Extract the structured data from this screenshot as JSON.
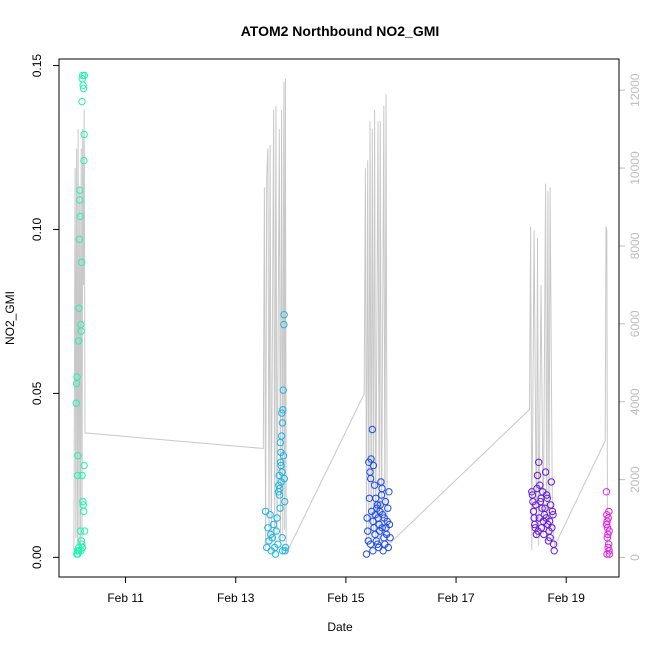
{
  "chart_data": {
    "type": "scatter",
    "title": "ATOM2 Northbound NO2_GMI",
    "xlabel": "Date",
    "ylabel": "NO2_GMI",
    "xlim": [
      "2017-02-09T19:00",
      "2017-02-19T23:00"
    ],
    "ylim": [
      -0.006,
      0.152
    ],
    "y_ticks": [
      0.0,
      0.05,
      0.1,
      0.15
    ],
    "y_tick_labels": [
      "0.00",
      "0.05",
      "0.10",
      "0.15"
    ],
    "x_ticks": [
      "2017-02-11",
      "2017-02-13",
      "2017-02-15",
      "2017-02-17",
      "2017-02-19"
    ],
    "x_tick_labels": [
      "Feb 11",
      "Feb 13",
      "Feb 15",
      "Feb 17",
      "Feb 19"
    ],
    "y2_lim": [
      -500,
      12800
    ],
    "y2_ticks": [
      0,
      2000,
      4000,
      6000,
      8000,
      10000,
      12000
    ],
    "y2_tick_labels": [
      "0",
      "2000",
      "4000",
      "6000",
      "8000",
      "10000",
      "12000"
    ],
    "y2_color": "#bdbdbd",
    "grid": false,
    "series": [
      {
        "color": "#1ef5b0",
        "points": [
          [
            "2017-02-10T03:00",
            0.002
          ],
          [
            "2017-02-10T03:12",
            0.001
          ],
          [
            "2017-02-10T03:24",
            0.002
          ],
          [
            "2017-02-10T03:36",
            0.003
          ],
          [
            "2017-02-10T02:40",
            0.053
          ],
          [
            "2017-02-10T02:50",
            0.055
          ],
          [
            "2017-02-10T02:30",
            0.047
          ],
          [
            "2017-02-10T03:05",
            0.025
          ],
          [
            "2017-02-10T03:15",
            0.031
          ],
          [
            "2017-02-10T03:30",
            0.066
          ],
          [
            "2017-02-10T03:40",
            0.076
          ],
          [
            "2017-02-10T03:50",
            0.097
          ],
          [
            "2017-02-10T04:00",
            0.109
          ],
          [
            "2017-02-10T04:05",
            0.112
          ],
          [
            "2017-02-10T04:15",
            0.104
          ],
          [
            "2017-02-10T04:30",
            0.071
          ],
          [
            "2017-02-10T04:40",
            0.069
          ],
          [
            "2017-02-10T04:50",
            0.09
          ],
          [
            "2017-02-10T05:00",
            0.139
          ],
          [
            "2017-02-10T05:10",
            0.146
          ],
          [
            "2017-02-10T05:20",
            0.147
          ],
          [
            "2017-02-10T05:30",
            0.144
          ],
          [
            "2017-02-10T05:40",
            0.143
          ],
          [
            "2017-02-10T05:50",
            0.121
          ],
          [
            "2017-02-10T06:00",
            0.129
          ],
          [
            "2017-02-10T06:05",
            0.147
          ],
          [
            "2017-02-10T04:20",
            0.008
          ],
          [
            "2017-02-10T04:45",
            0.005
          ],
          [
            "2017-02-10T05:05",
            0.025
          ],
          [
            "2017-02-10T05:25",
            0.017
          ],
          [
            "2017-02-10T05:35",
            0.016
          ],
          [
            "2017-02-10T05:45",
            0.014
          ],
          [
            "2017-02-10T05:55",
            0.028
          ],
          [
            "2017-02-10T06:10",
            0.008
          ],
          [
            "2017-02-10T04:35",
            0.002
          ],
          [
            "2017-02-10T05:15",
            0.003
          ],
          [
            "2017-02-10T02:45",
            0.001
          ],
          [
            "2017-02-10T03:45",
            0.002
          ],
          [
            "2017-02-10T04:55",
            0.004
          ]
        ]
      },
      {
        "color": "#1ab4e8",
        "points": [
          [
            "2017-02-13T13:00",
            0.014
          ],
          [
            "2017-02-13T13:30",
            0.003
          ],
          [
            "2017-02-13T14:00",
            0.009
          ],
          [
            "2017-02-13T14:30",
            0.005
          ],
          [
            "2017-02-13T15:00",
            0.013
          ],
          [
            "2017-02-13T15:30",
            0.002
          ],
          [
            "2017-02-13T16:00",
            0.006
          ],
          [
            "2017-02-13T16:30",
            0.01
          ],
          [
            "2017-02-13T17:00",
            0.003
          ],
          [
            "2017-02-13T17:20",
            0.001
          ],
          [
            "2017-02-13T17:40",
            0.008
          ],
          [
            "2017-02-13T18:00",
            0.012
          ],
          [
            "2017-02-13T18:20",
            0.004
          ],
          [
            "2017-02-13T18:40",
            0.02
          ],
          [
            "2017-02-13T19:00",
            0.025
          ],
          [
            "2017-02-13T19:10",
            0.021
          ],
          [
            "2017-02-13T19:20",
            0.015
          ],
          [
            "2017-02-13T19:30",
            0.029
          ],
          [
            "2017-02-13T19:40",
            0.032
          ],
          [
            "2017-02-13T19:50",
            0.023
          ],
          [
            "2017-02-13T20:00",
            0.037
          ],
          [
            "2017-02-13T20:10",
            0.026
          ],
          [
            "2017-02-13T20:20",
            0.041
          ],
          [
            "2017-02-13T20:30",
            0.045
          ],
          [
            "2017-02-13T20:40",
            0.051
          ],
          [
            "2017-02-13T20:50",
            0.031
          ],
          [
            "2017-02-13T21:00",
            0.071
          ],
          [
            "2017-02-13T21:05",
            0.074
          ],
          [
            "2017-02-13T21:10",
            0.024
          ],
          [
            "2017-02-13T21:20",
            0.017
          ],
          [
            "2017-02-13T21:30",
            0.002
          ],
          [
            "2017-02-13T21:40",
            0.003
          ],
          [
            "2017-02-13T18:50",
            0.022
          ],
          [
            "2017-02-13T19:05",
            0.019
          ],
          [
            "2017-02-13T19:25",
            0.035
          ],
          [
            "2017-02-13T19:45",
            0.028
          ],
          [
            "2017-02-13T20:05",
            0.044
          ],
          [
            "2017-02-13T20:15",
            0.006
          ],
          [
            "2017-02-13T20:25",
            0.002
          ],
          [
            "2017-02-13T15:15",
            0.007
          ]
        ]
      },
      {
        "color": "#1b4af0",
        "points": [
          [
            "2017-02-15T09:00",
            0.001
          ],
          [
            "2017-02-15T09:30",
            0.008
          ],
          [
            "2017-02-15T10:00",
            0.029
          ],
          [
            "2017-02-15T10:30",
            0.026
          ],
          [
            "2017-02-15T11:00",
            0.03
          ],
          [
            "2017-02-15T11:30",
            0.039
          ],
          [
            "2017-02-15T12:00",
            0.028
          ],
          [
            "2017-02-15T12:30",
            0.022
          ],
          [
            "2017-02-15T13:00",
            0.018
          ],
          [
            "2017-02-15T13:30",
            0.015
          ],
          [
            "2017-02-15T14:00",
            0.012
          ],
          [
            "2017-02-15T14:30",
            0.01
          ],
          [
            "2017-02-15T15:00",
            0.016
          ],
          [
            "2017-02-15T15:30",
            0.019
          ],
          [
            "2017-02-15T16:00",
            0.013
          ],
          [
            "2017-02-15T16:30",
            0.006
          ],
          [
            "2017-02-15T17:00",
            0.004
          ],
          [
            "2017-02-15T17:30",
            0.009
          ],
          [
            "2017-02-15T18:00",
            0.011
          ],
          [
            "2017-02-15T18:30",
            0.003
          ],
          [
            "2017-02-15T09:15",
            0.012
          ],
          [
            "2017-02-15T09:45",
            0.005
          ],
          [
            "2017-02-15T10:15",
            0.018
          ],
          [
            "2017-02-15T10:45",
            0.004
          ],
          [
            "2017-02-15T11:15",
            0.014
          ],
          [
            "2017-02-15T11:45",
            0.002
          ],
          [
            "2017-02-15T12:15",
            0.009
          ],
          [
            "2017-02-15T12:45",
            0.007
          ],
          [
            "2017-02-15T13:15",
            0.005
          ],
          [
            "2017-02-15T13:45",
            0.016
          ],
          [
            "2017-02-15T14:15",
            0.003
          ],
          [
            "2017-02-15T14:45",
            0.008
          ],
          [
            "2017-02-15T15:15",
            0.023
          ],
          [
            "2017-02-15T15:45",
            0.021
          ],
          [
            "2017-02-15T16:15",
            0.002
          ],
          [
            "2017-02-15T16:45",
            0.012
          ],
          [
            "2017-02-15T17:15",
            0.017
          ],
          [
            "2017-02-15T17:45",
            0.007
          ],
          [
            "2017-02-15T18:15",
            0.015
          ],
          [
            "2017-02-15T18:45",
            0.02
          ],
          [
            "2017-02-15T19:00",
            0.01
          ],
          [
            "2017-02-15T19:15",
            0.006
          ],
          [
            "2017-02-15T10:50",
            0.024
          ],
          [
            "2017-02-15T11:50",
            0.011
          ],
          [
            "2017-02-15T12:50",
            0.013
          ],
          [
            "2017-02-15T13:50",
            0.004
          ],
          [
            "2017-02-15T14:50",
            0.014
          ],
          [
            "2017-02-15T15:50",
            0.009
          ]
        ]
      },
      {
        "color": "#6418e0",
        "points": [
          [
            "2017-02-18T09:00",
            0.02
          ],
          [
            "2017-02-18T09:30",
            0.017
          ],
          [
            "2017-02-18T10:00",
            0.012
          ],
          [
            "2017-02-18T10:30",
            0.009
          ],
          [
            "2017-02-18T11:00",
            0.007
          ],
          [
            "2017-02-18T11:30",
            0.025
          ],
          [
            "2017-02-18T12:00",
            0.029
          ],
          [
            "2017-02-18T12:30",
            0.022
          ],
          [
            "2017-02-18T13:00",
            0.018
          ],
          [
            "2017-02-18T13:30",
            0.015
          ],
          [
            "2017-02-18T14:00",
            0.011
          ],
          [
            "2017-02-18T14:30",
            0.013
          ],
          [
            "2017-02-18T15:00",
            0.026
          ],
          [
            "2017-02-18T15:30",
            0.019
          ],
          [
            "2017-02-18T16:00",
            0.01
          ],
          [
            "2017-02-18T16:30",
            0.008
          ],
          [
            "2017-02-18T17:00",
            0.006
          ],
          [
            "2017-02-18T17:30",
            0.023
          ],
          [
            "2017-02-18T18:00",
            0.014
          ],
          [
            "2017-02-18T18:30",
            0.004
          ],
          [
            "2017-02-18T09:15",
            0.019
          ],
          [
            "2017-02-18T09:45",
            0.014
          ],
          [
            "2017-02-18T10:15",
            0.01
          ],
          [
            "2017-02-18T10:45",
            0.016
          ],
          [
            "2017-02-18T11:15",
            0.021
          ],
          [
            "2017-02-18T11:45",
            0.008
          ],
          [
            "2017-02-18T12:15",
            0.012
          ],
          [
            "2017-02-18T12:45",
            0.017
          ],
          [
            "2017-02-18T13:15",
            0.009
          ],
          [
            "2017-02-18T13:45",
            0.02
          ],
          [
            "2017-02-18T14:15",
            0.007
          ],
          [
            "2017-02-18T14:45",
            0.015
          ],
          [
            "2017-02-18T15:15",
            0.012
          ],
          [
            "2017-02-18T15:45",
            0.018
          ],
          [
            "2017-02-18T16:15",
            0.005
          ],
          [
            "2017-02-18T16:45",
            0.011
          ],
          [
            "2017-02-18T17:15",
            0.016
          ],
          [
            "2017-02-18T17:45",
            0.009
          ],
          [
            "2017-02-18T18:15",
            0.013
          ],
          [
            "2017-02-18T18:45",
            0.002
          ]
        ]
      },
      {
        "color": "#e21ee8",
        "points": [
          [
            "2017-02-19T17:30",
            0.02
          ],
          [
            "2017-02-19T17:40",
            0.013
          ],
          [
            "2017-02-19T17:50",
            0.011
          ],
          [
            "2017-02-19T18:00",
            0.009
          ],
          [
            "2017-02-19T18:10",
            0.007
          ],
          [
            "2017-02-19T18:20",
            0.012
          ],
          [
            "2017-02-19T18:30",
            0.004
          ],
          [
            "2017-02-19T18:40",
            0.002
          ],
          [
            "2017-02-19T18:50",
            0.001
          ],
          [
            "2017-02-19T17:35",
            0.01
          ],
          [
            "2017-02-19T17:55",
            0.006
          ],
          [
            "2017-02-19T18:15",
            0.003
          ],
          [
            "2017-02-19T18:35",
            0.014
          ],
          [
            "2017-02-19T18:45",
            0.008
          ],
          [
            "2017-02-19T17:45",
            0.001
          ]
        ]
      }
    ],
    "altitude_line": {
      "color": "#c8c8c8",
      "points": [
        [
          "2017-02-10T01:30",
          200
        ],
        [
          "2017-02-10T02:00",
          10000
        ],
        [
          "2017-02-10T02:20",
          500
        ],
        [
          "2017-02-10T02:40",
          10500
        ],
        [
          "2017-02-10T03:00",
          300
        ],
        [
          "2017-02-10T03:20",
          11000
        ],
        [
          "2017-02-10T03:40",
          400
        ],
        [
          "2017-02-10T04:00",
          9500
        ],
        [
          "2017-02-10T04:20",
          300
        ],
        [
          "2017-02-10T04:40",
          10500
        ],
        [
          "2017-02-10T05:00",
          500
        ],
        [
          "2017-02-10T05:20",
          11000
        ],
        [
          "2017-02-10T05:40",
          7000
        ],
        [
          "2017-02-10T06:00",
          11500
        ],
        [
          "2017-02-10T06:20",
          3200
        ],
        [
          "2017-02-13T12:00",
          2800
        ],
        [
          "2017-02-13T12:30",
          9500
        ],
        [
          "2017-02-13T13:00",
          200
        ],
        [
          "2017-02-13T13:30",
          9800
        ],
        [
          "2017-02-13T14:00",
          10500
        ],
        [
          "2017-02-13T14:30",
          300
        ],
        [
          "2017-02-13T15:00",
          10600
        ],
        [
          "2017-02-13T15:30",
          500
        ],
        [
          "2017-02-13T16:30",
          11500
        ],
        [
          "2017-02-13T17:00",
          400
        ],
        [
          "2017-02-13T17:30",
          11600
        ],
        [
          "2017-02-13T18:00",
          600
        ],
        [
          "2017-02-13T19:00",
          11000
        ],
        [
          "2017-02-13T19:30",
          400
        ],
        [
          "2017-02-13T20:00",
          11500
        ],
        [
          "2017-02-13T20:30",
          500
        ],
        [
          "2017-02-13T21:00",
          12200
        ],
        [
          "2017-02-13T21:20",
          700
        ],
        [
          "2017-02-13T21:40",
          12300
        ],
        [
          "2017-02-13T22:00",
          100
        ],
        [
          "2017-02-15T08:00",
          4200
        ],
        [
          "2017-02-15T08:30",
          10000
        ],
        [
          "2017-02-15T09:00",
          300
        ],
        [
          "2017-02-15T09:30",
          10200
        ],
        [
          "2017-02-15T10:00",
          500
        ],
        [
          "2017-02-15T10:30",
          11200
        ],
        [
          "2017-02-15T11:00",
          400
        ],
        [
          "2017-02-15T11:30",
          11000
        ],
        [
          "2017-02-15T12:00",
          600
        ],
        [
          "2017-02-15T12:30",
          11500
        ],
        [
          "2017-02-15T13:00",
          400
        ],
        [
          "2017-02-15T14:00",
          11200
        ],
        [
          "2017-02-15T14:30",
          400
        ],
        [
          "2017-02-15T15:00",
          11200
        ],
        [
          "2017-02-15T15:30",
          300
        ],
        [
          "2017-02-15T16:30",
          11600
        ],
        [
          "2017-02-15T17:00",
          500
        ],
        [
          "2017-02-15T17:30",
          11900
        ],
        [
          "2017-02-15T18:00",
          300
        ],
        [
          "2017-02-18T08:00",
          3800
        ],
        [
          "2017-02-18T08:30",
          8500
        ],
        [
          "2017-02-18T09:00",
          200
        ],
        [
          "2017-02-18T10:00",
          8400
        ],
        [
          "2017-02-18T11:00",
          500
        ],
        [
          "2017-02-18T11:30",
          8200
        ],
        [
          "2017-02-18T12:00",
          300
        ],
        [
          "2017-02-18T13:00",
          7000
        ],
        [
          "2017-02-18T14:00",
          600
        ],
        [
          "2017-02-18T15:00",
          9600
        ],
        [
          "2017-02-18T15:30",
          400
        ],
        [
          "2017-02-18T16:00",
          9400
        ],
        [
          "2017-02-18T16:30",
          600
        ],
        [
          "2017-02-18T17:00",
          9500
        ],
        [
          "2017-02-18T18:00",
          1000
        ],
        [
          "2017-02-18T19:00",
          300
        ],
        [
          "2017-02-19T17:00",
          3000
        ],
        [
          "2017-02-19T17:20",
          8500
        ],
        [
          "2017-02-19T17:40",
          8400
        ],
        [
          "2017-02-19T18:00",
          200
        ]
      ]
    }
  }
}
